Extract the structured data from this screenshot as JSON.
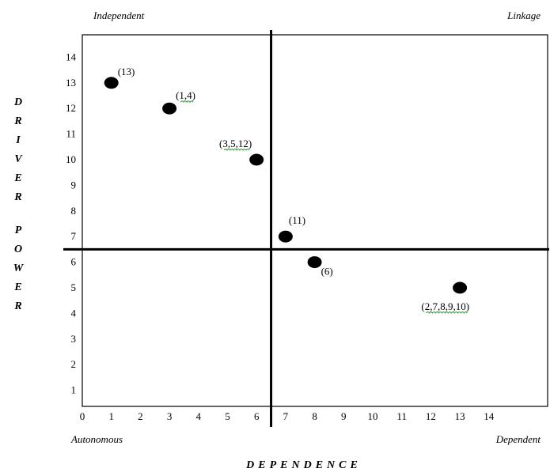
{
  "chart_data": {
    "type": "scatter",
    "title": "",
    "xlabel": "DEPENDENCE",
    "ylabel": "DRIVER POWER",
    "xlim": [
      0,
      15
    ],
    "ylim": [
      0,
      15
    ],
    "x_ticks": [
      "0",
      "1",
      "2",
      "3",
      "4",
      "5",
      "6",
      "7",
      "8",
      "9",
      "10",
      "11",
      "12",
      "13",
      "14"
    ],
    "y_ticks": [
      "1",
      "2",
      "3",
      "4",
      "5",
      "6",
      "7",
      "8",
      "9",
      "10",
      "11",
      "12",
      "13",
      "14"
    ],
    "grid": false,
    "divider": {
      "x": 6.5,
      "y": 6.5
    },
    "quadrants": {
      "top_left": "Independent",
      "top_right": "Linkage",
      "bottom_left": "Autonomous",
      "bottom_right": "Dependent"
    },
    "points": [
      {
        "label": "(13)",
        "x": 1,
        "y": 13
      },
      {
        "label": "(1,4)",
        "x": 3,
        "y": 12
      },
      {
        "label": "(3,5,12)",
        "x": 6,
        "y": 10
      },
      {
        "label": "(11)",
        "x": 7,
        "y": 7
      },
      {
        "label": "(6)",
        "x": 8,
        "y": 6
      },
      {
        "label": "(2,7,8,9,10)",
        "x": 13,
        "y": 5
      }
    ]
  }
}
